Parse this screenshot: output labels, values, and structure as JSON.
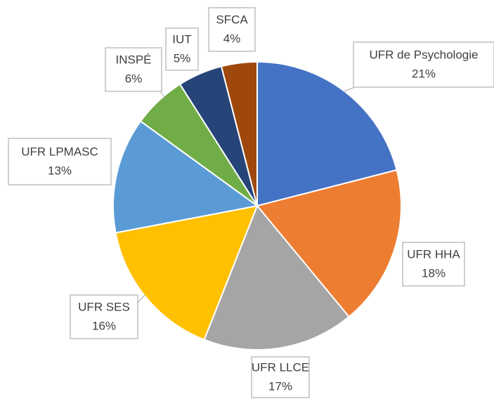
{
  "chart_data": {
    "type": "pie",
    "categories": [
      "UFR de Psychologie",
      "UFR HHA",
      "UFR LLCE",
      "UFR SES",
      "UFR LPMASC",
      "INSPÉ",
      "IUT",
      "SFCA"
    ],
    "values": [
      21,
      18,
      17,
      16,
      13,
      6,
      5,
      4
    ],
    "value_labels": [
      "21%",
      "18%",
      "17%",
      "16%",
      "13%",
      "6%",
      "5%",
      "4%"
    ],
    "colors": [
      "#4472c4",
      "#ed7d31",
      "#a5a5a5",
      "#ffc000",
      "#5b9bd5",
      "#70ad47",
      "#264478",
      "#9e480e"
    ]
  }
}
